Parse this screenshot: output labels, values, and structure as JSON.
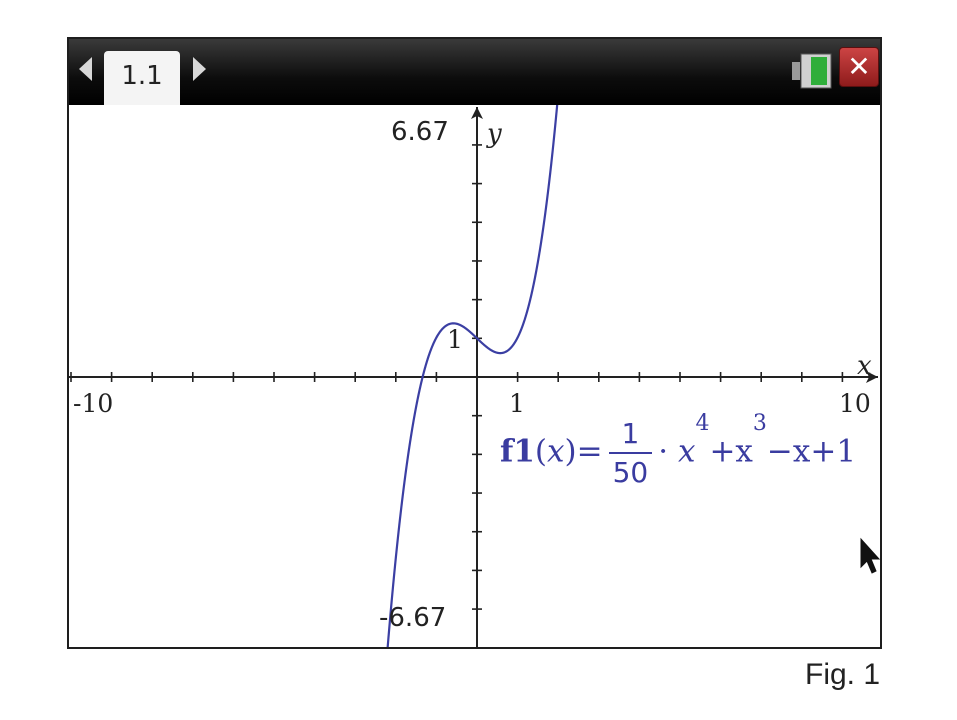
{
  "topbar": {
    "tab_label": "1.1"
  },
  "chart_data": {
    "type": "line",
    "function": {
      "label_name": "f1",
      "label_var": "x",
      "label_coef_num": "1",
      "label_coef_den": "50",
      "label_tail": "+x",
      "label_exp4": "4",
      "label_exp3": "3",
      "label_rest": "−x+1",
      "label_dot": "·",
      "label_eq": "="
    },
    "xlabel": "x",
    "ylabel": "y",
    "xlim": [
      -10,
      10
    ],
    "ylim": [
      -6.67,
      6.67
    ],
    "x_tick_labels": {
      "min": "-10",
      "one": "1",
      "max": "10"
    },
    "y_tick_labels": {
      "max": "6.67",
      "one": "1",
      "min": "-6.67"
    },
    "grid": false,
    "series": [
      {
        "color": "#3b3fa3",
        "coefficients": {
          "x4": 0.02,
          "x3": 1,
          "x2": 0,
          "x1": -1,
          "x0": 1
        }
      }
    ]
  },
  "caption": "Fig. 1"
}
